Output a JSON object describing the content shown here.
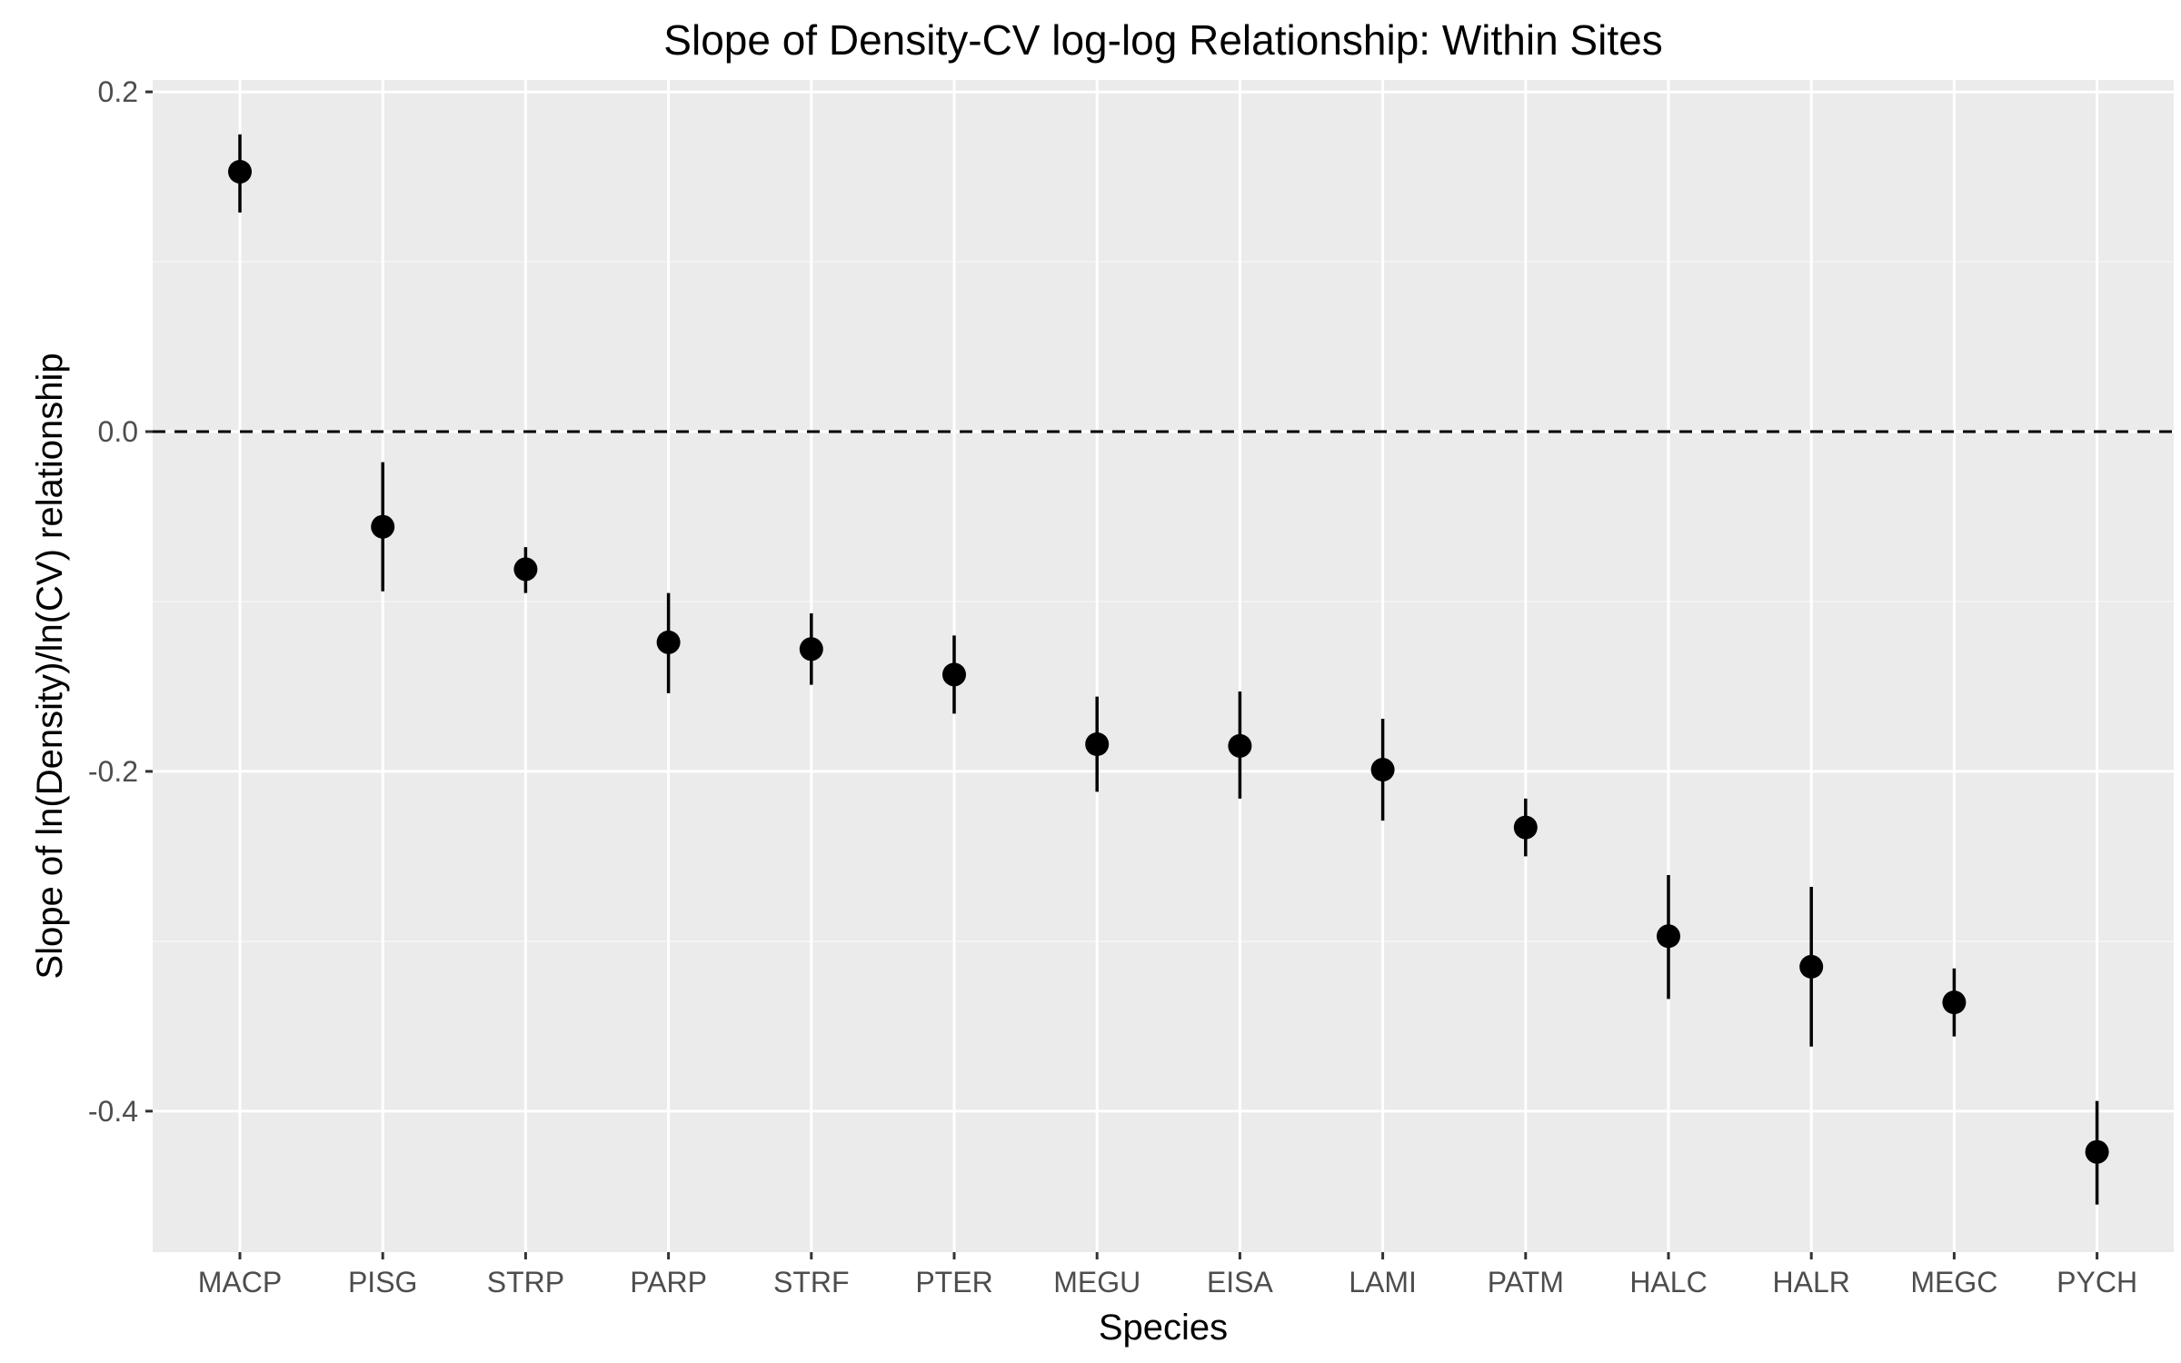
{
  "chart_data": {
    "type": "scatter",
    "title": "Slope of Density-CV log-log Relationship: Within Sites",
    "xlabel": "Species",
    "ylabel": "Slope of ln(Density)/ln(CV) relationship",
    "categories": [
      "MACP",
      "PISG",
      "STRP",
      "PARP",
      "STRF",
      "PTER",
      "MEGU",
      "EISA",
      "LAMI",
      "PATM",
      "HALC",
      "HALR",
      "MEGC",
      "PYCH"
    ],
    "values": [
      0.153,
      -0.056,
      -0.081,
      -0.124,
      -0.128,
      -0.143,
      -0.184,
      -0.185,
      -0.199,
      -0.233,
      -0.297,
      -0.315,
      -0.336,
      -0.424
    ],
    "lower": [
      0.129,
      -0.094,
      -0.095,
      -0.154,
      -0.149,
      -0.166,
      -0.212,
      -0.216,
      -0.229,
      -0.25,
      -0.334,
      -0.362,
      -0.356,
      -0.455
    ],
    "upper": [
      0.175,
      -0.018,
      -0.068,
      -0.095,
      -0.107,
      -0.12,
      -0.156,
      -0.153,
      -0.169,
      -0.216,
      -0.261,
      -0.268,
      -0.316,
      -0.394
    ],
    "ylim": [
      -0.483,
      0.207
    ],
    "yticks": [
      0.2,
      0.0,
      -0.2,
      -0.4
    ],
    "ytick_labels": [
      "0.2",
      "0.0",
      "-0.2",
      "-0.4"
    ],
    "reference_line": {
      "y": 0.0,
      "style": "dashed"
    },
    "grid": true,
    "legend": "none",
    "colors": {
      "panel": "#ebebeb",
      "grid_major": "#ffffff",
      "grid_minor": "#f5f5f5",
      "point": "#000000",
      "axis_text": "#4d4d4d",
      "tick": "#333333"
    }
  }
}
